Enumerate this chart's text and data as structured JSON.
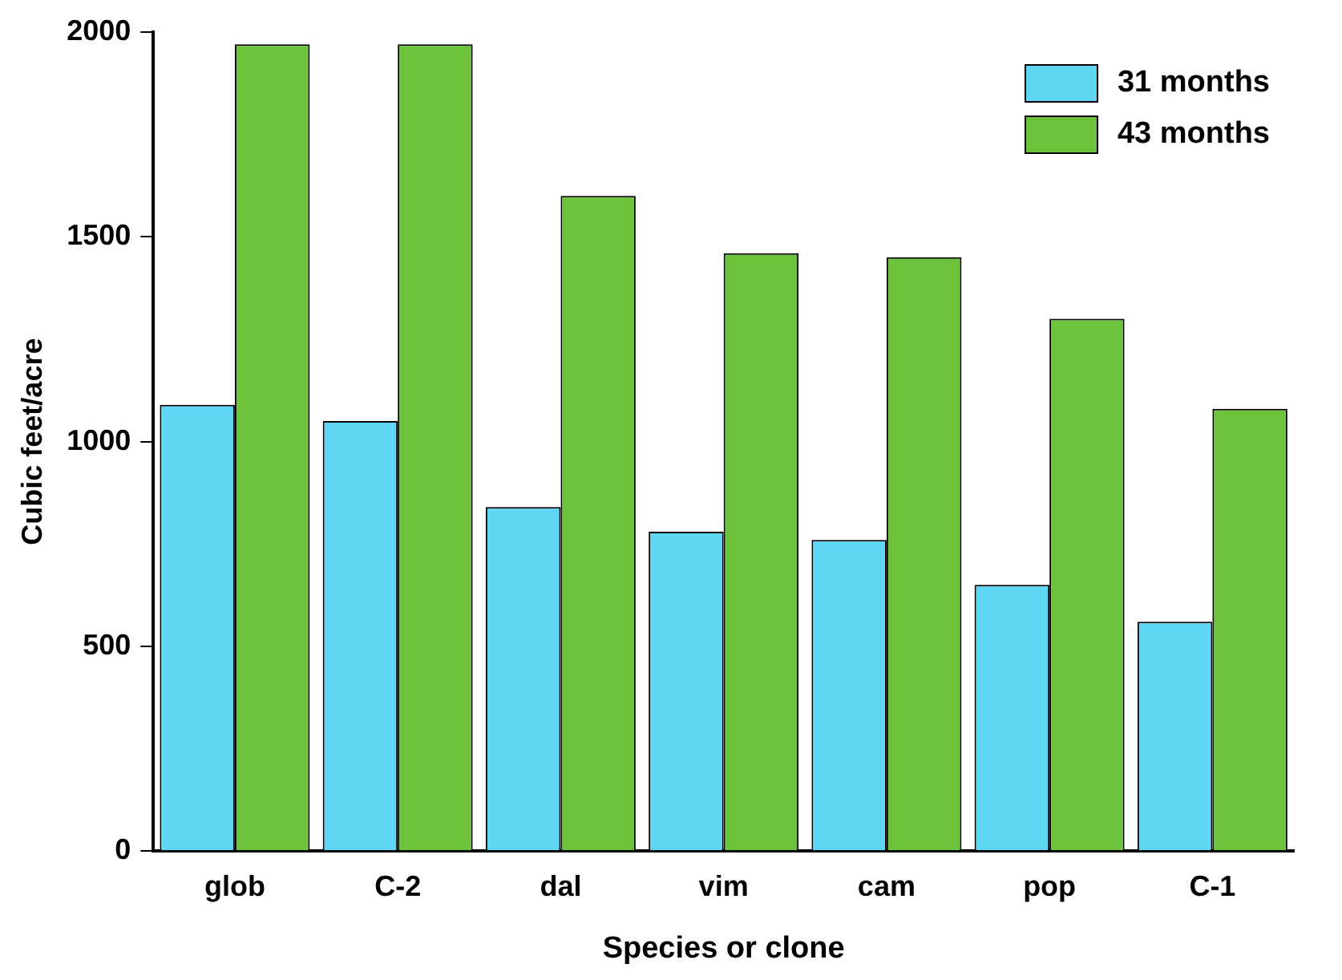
{
  "chart_data": {
    "type": "bar",
    "xlabel": "Species or clone",
    "ylabel": "Cubic feet/acre",
    "categories": [
      "glob",
      "C-2",
      "dal",
      "vim",
      "cam",
      "pop",
      "C-1"
    ],
    "series": [
      {
        "name": "31 months",
        "color": "#5fd6f4",
        "values": [
          1090,
          1050,
          840,
          780,
          760,
          650,
          560
        ]
      },
      {
        "name": "43 months",
        "color": "#6cc23a",
        "values": [
          1970,
          1970,
          1600,
          1460,
          1450,
          1300,
          1080
        ]
      }
    ],
    "ylim": [
      0,
      2000
    ],
    "yticks": [
      0,
      500,
      1000,
      1500,
      2000
    ],
    "grid": false,
    "legend": "top right"
  }
}
